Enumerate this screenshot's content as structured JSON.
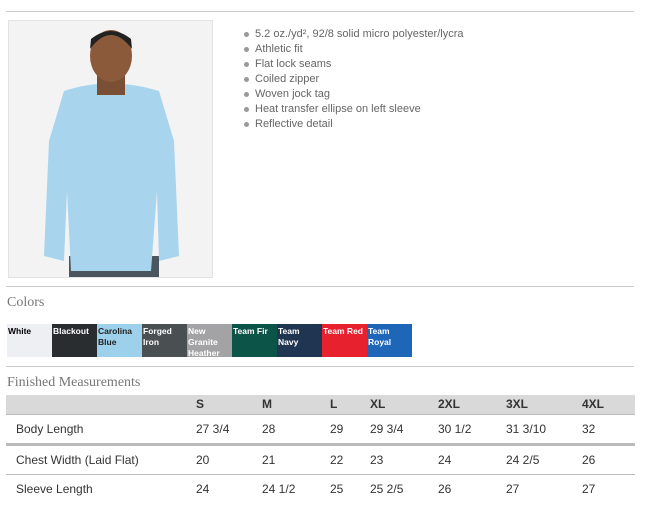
{
  "product": {
    "features": [
      "5.2 oz./yd², 92/8 solid micro polyester/lycra",
      "Athletic fit",
      "Flat lock seams",
      "Coiled zipper",
      "Woven jock tag",
      "Heat transfer ellipse on left sleeve",
      "Reflective detail"
    ]
  },
  "colors": {
    "title": "Colors",
    "swatches": [
      {
        "name": "White",
        "hex": "#eeeff3",
        "text": "#000"
      },
      {
        "name": "Blackout",
        "hex": "#2a2d30",
        "text": "#fff"
      },
      {
        "name": "Carolina Blue",
        "hex": "#9dd0ea",
        "text": "#222"
      },
      {
        "name": "Forged Iron",
        "hex": "#4a4f52",
        "text": "#fff"
      },
      {
        "name": "New Granite Heather",
        "hex": "#a3a3a5",
        "text": "#fff"
      },
      {
        "name": "Team Fir",
        "hex": "#0d5448",
        "text": "#fff"
      },
      {
        "name": "Team Navy",
        "hex": "#1f3552",
        "text": "#fff"
      },
      {
        "name": "Team Red",
        "hex": "#e8212f",
        "text": "#fff"
      },
      {
        "name": "Team Royal",
        "hex": "#1d66b8",
        "text": "#fff"
      }
    ]
  },
  "measurements": {
    "title": "Finished Measurements",
    "headers": [
      "",
      "S",
      "M",
      "L",
      "XL",
      "2XL",
      "3XL",
      "4XL"
    ],
    "rows": [
      [
        "Body Length",
        "27 3/4",
        "28",
        "29",
        "29 3/4",
        "30 1/2",
        "31 3/10",
        "32"
      ],
      [
        "Chest Width (Laid Flat)",
        "20",
        "21",
        "22",
        "23",
        "24",
        "24 2/5",
        "26"
      ],
      [
        "Sleeve Length",
        "24",
        "24 1/2",
        "25",
        "25 2/5",
        "26",
        "27",
        "27"
      ]
    ]
  }
}
